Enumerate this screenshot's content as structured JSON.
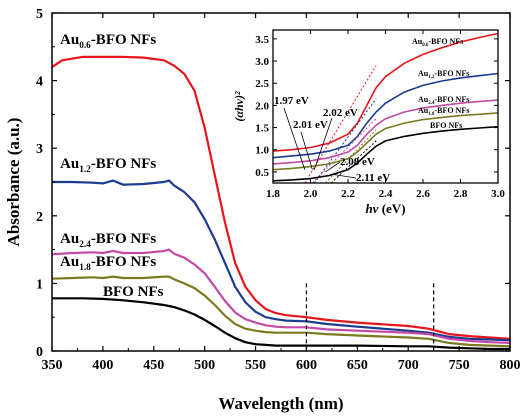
{
  "chart_data": [
    {
      "type": "line",
      "xlabel": "Wavelength (nm)",
      "ylabel": "Absorbance (a.u.)",
      "xlim": [
        350,
        800
      ],
      "ylim": [
        0,
        5
      ],
      "xticks": [
        "350",
        "400",
        "450",
        "500",
        "550",
        "600",
        "650",
        "700",
        "750",
        "800"
      ],
      "yticks": [
        "0",
        "1",
        "2",
        "3",
        "4",
        "5"
      ],
      "grid": false,
      "markers": [
        600,
        725
      ],
      "series": [
        {
          "name": "Au0.6-BFO NFs",
          "label_base": "Au",
          "label_sub": "0.6",
          "label_rest": "-BFO NFs",
          "color": "#e8141b",
          "x": [
            350,
            360,
            380,
            400,
            420,
            440,
            460,
            470,
            480,
            490,
            500,
            510,
            520,
            530,
            540,
            550,
            560,
            570,
            580,
            600,
            620,
            650,
            700,
            720,
            740,
            760,
            780,
            800
          ],
          "y": [
            4.2,
            4.3,
            4.35,
            4.35,
            4.35,
            4.34,
            4.3,
            4.22,
            4.1,
            3.85,
            3.3,
            2.6,
            1.9,
            1.3,
            0.95,
            0.75,
            0.62,
            0.56,
            0.53,
            0.5,
            0.46,
            0.42,
            0.37,
            0.33,
            0.25,
            0.22,
            0.2,
            0.18
          ]
        },
        {
          "name": "Au1.2-BFO NFs",
          "label_base": "Au",
          "label_sub": "1.2",
          "label_rest": "-BFO NFs",
          "color": "#1c3a8f",
          "x": [
            350,
            370,
            390,
            400,
            410,
            420,
            440,
            460,
            465,
            470,
            480,
            490,
            500,
            510,
            520,
            530,
            540,
            550,
            560,
            570,
            580,
            600,
            620,
            650,
            700,
            720,
            740,
            760,
            780,
            800
          ],
          "y": [
            2.5,
            2.5,
            2.49,
            2.48,
            2.52,
            2.46,
            2.47,
            2.5,
            2.52,
            2.45,
            2.35,
            2.2,
            1.95,
            1.65,
            1.3,
            0.95,
            0.72,
            0.58,
            0.5,
            0.47,
            0.45,
            0.44,
            0.4,
            0.36,
            0.3,
            0.27,
            0.21,
            0.18,
            0.17,
            0.16
          ]
        },
        {
          "name": "Au2.4-BFO NFs",
          "label_base": "Au",
          "label_sub": "2.4",
          "label_rest": "-BFO NFs",
          "color": "#c24aa6",
          "x": [
            350,
            370,
            390,
            400,
            410,
            420,
            440,
            460,
            465,
            470,
            480,
            490,
            500,
            510,
            520,
            530,
            540,
            550,
            560,
            570,
            580,
            600,
            620,
            650,
            700,
            720,
            740,
            760,
            780,
            800
          ],
          "y": [
            1.43,
            1.45,
            1.46,
            1.45,
            1.48,
            1.45,
            1.45,
            1.48,
            1.5,
            1.44,
            1.38,
            1.28,
            1.15,
            0.95,
            0.74,
            0.57,
            0.47,
            0.42,
            0.38,
            0.36,
            0.35,
            0.35,
            0.32,
            0.3,
            0.27,
            0.25,
            0.18,
            0.15,
            0.13,
            0.12
          ]
        },
        {
          "name": "Au1.8-BFO NFs",
          "label_base": "Au",
          "label_sub": "1.8",
          "label_rest": "-BFO NFs",
          "color": "#7b7a1e",
          "x": [
            350,
            370,
            390,
            400,
            410,
            420,
            440,
            460,
            465,
            470,
            480,
            490,
            500,
            510,
            520,
            530,
            540,
            550,
            560,
            570,
            580,
            600,
            620,
            650,
            700,
            720,
            740,
            760,
            780,
            800
          ],
          "y": [
            1.07,
            1.08,
            1.09,
            1.08,
            1.1,
            1.08,
            1.08,
            1.1,
            1.1,
            1.06,
            1.0,
            0.93,
            0.82,
            0.68,
            0.52,
            0.4,
            0.33,
            0.3,
            0.28,
            0.27,
            0.27,
            0.27,
            0.25,
            0.23,
            0.2,
            0.18,
            0.12,
            0.09,
            0.08,
            0.07
          ]
        },
        {
          "name": "BFO NFs",
          "label_base": "BFO NFs",
          "label_sub": "",
          "label_rest": "",
          "color": "#000000",
          "x": [
            350,
            380,
            400,
            420,
            440,
            460,
            470,
            480,
            490,
            500,
            510,
            520,
            530,
            540,
            550,
            560,
            570,
            580,
            600,
            650,
            700,
            720,
            740,
            760,
            780,
            800
          ],
          "y": [
            0.78,
            0.78,
            0.77,
            0.75,
            0.72,
            0.68,
            0.65,
            0.6,
            0.54,
            0.46,
            0.37,
            0.27,
            0.19,
            0.13,
            0.1,
            0.09,
            0.08,
            0.08,
            0.08,
            0.08,
            0.07,
            0.07,
            0.05,
            0.04,
            0.03,
            0.03
          ]
        }
      ]
    },
    {
      "type": "line",
      "xlabel": "hν (eV)",
      "xlabel_italic": "hν",
      "xlabel_rest": " (eV)",
      "ylabel": "(αhν)²",
      "xlim": [
        1.8,
        3.0
      ],
      "ylim": [
        0.25,
        3.7
      ],
      "xticks": [
        "1.8",
        "2.0",
        "2.2",
        "2.4",
        "2.6",
        "2.8",
        "3.0"
      ],
      "yticks": [
        "0.5",
        "1.0",
        "1.5",
        "2.0",
        "2.5",
        "3.0",
        "3.5"
      ],
      "annotations": [
        "1.97 eV",
        "2.02 eV",
        "2.01 eV",
        "2.08 eV",
        "2.11 eV"
      ],
      "series": [
        {
          "name": "Au0.6-BFO NFs",
          "label_base": "Au",
          "label_sub": "0.6",
          "label_rest": "-BFO NFs",
          "color": "#e8141b",
          "x": [
            1.8,
            1.9,
            2.0,
            2.1,
            2.2,
            2.25,
            2.3,
            2.35,
            2.4,
            2.5,
            2.6,
            2.7,
            2.8,
            2.9,
            3.0
          ],
          "y": [
            0.97,
            1.0,
            1.05,
            1.15,
            1.35,
            1.6,
            2.0,
            2.4,
            2.65,
            2.95,
            3.15,
            3.3,
            3.43,
            3.53,
            3.62
          ],
          "tangent": [
            [
              1.97,
              0.25
            ],
            [
              2.35,
              2.9
            ]
          ]
        },
        {
          "name": "Au1.2-BFO NFs",
          "label_base": "Au",
          "label_sub": "1.2",
          "label_rest": "-BFO NFs",
          "color": "#1c3a8f",
          "x": [
            1.8,
            1.9,
            2.0,
            2.1,
            2.2,
            2.25,
            2.3,
            2.35,
            2.4,
            2.5,
            2.6,
            2.7,
            2.8,
            2.9,
            3.0
          ],
          "y": [
            0.82,
            0.86,
            0.9,
            0.97,
            1.1,
            1.3,
            1.6,
            1.85,
            2.05,
            2.3,
            2.45,
            2.55,
            2.62,
            2.67,
            2.72
          ],
          "tangent": [
            [
              2.02,
              0.25
            ],
            [
              2.35,
              2.15
            ]
          ]
        },
        {
          "name": "Au2.4-BFO NFs",
          "label_base": "Au",
          "label_sub": "2.4",
          "label_rest": "-BFO NFs",
          "color": "#c24aa6",
          "x": [
            1.8,
            1.9,
            2.0,
            2.1,
            2.2,
            2.25,
            2.3,
            2.35,
            2.4,
            2.5,
            2.6,
            2.7,
            2.8,
            2.9,
            3.0
          ],
          "y": [
            0.68,
            0.71,
            0.75,
            0.82,
            0.95,
            1.1,
            1.35,
            1.55,
            1.7,
            1.85,
            1.94,
            2.0,
            2.05,
            2.09,
            2.12
          ],
          "tangent": [
            [
              2.01,
              0.25
            ],
            [
              2.35,
              1.7
            ]
          ]
        },
        {
          "name": "Au1.8-BFO NFs",
          "label_base": "Au",
          "label_sub": "1.8",
          "label_rest": "-BFO NFs",
          "color": "#7b7a1e",
          "x": [
            1.8,
            1.9,
            2.0,
            2.1,
            2.2,
            2.25,
            2.3,
            2.35,
            2.4,
            2.5,
            2.6,
            2.7,
            2.8,
            2.9,
            3.0
          ],
          "y": [
            0.55,
            0.58,
            0.62,
            0.68,
            0.8,
            0.95,
            1.15,
            1.35,
            1.48,
            1.6,
            1.68,
            1.73,
            1.77,
            1.8,
            1.83
          ],
          "tangent": [
            [
              2.08,
              0.25
            ],
            [
              2.35,
              1.45
            ]
          ]
        },
        {
          "name": "BFO NFs",
          "label_base": "BFO NFs",
          "label_sub": "",
          "label_rest": "",
          "color": "#000000",
          "x": [
            1.8,
            1.9,
            2.0,
            2.1,
            2.2,
            2.25,
            2.3,
            2.35,
            2.4,
            2.5,
            2.6,
            2.7,
            2.8,
            2.9,
            3.0
          ],
          "y": [
            0.3,
            0.32,
            0.35,
            0.42,
            0.55,
            0.7,
            0.9,
            1.08,
            1.2,
            1.3,
            1.37,
            1.42,
            1.46,
            1.49,
            1.52
          ],
          "tangent": [
            [
              2.11,
              0.25
            ],
            [
              2.35,
              1.2
            ]
          ]
        }
      ]
    }
  ]
}
